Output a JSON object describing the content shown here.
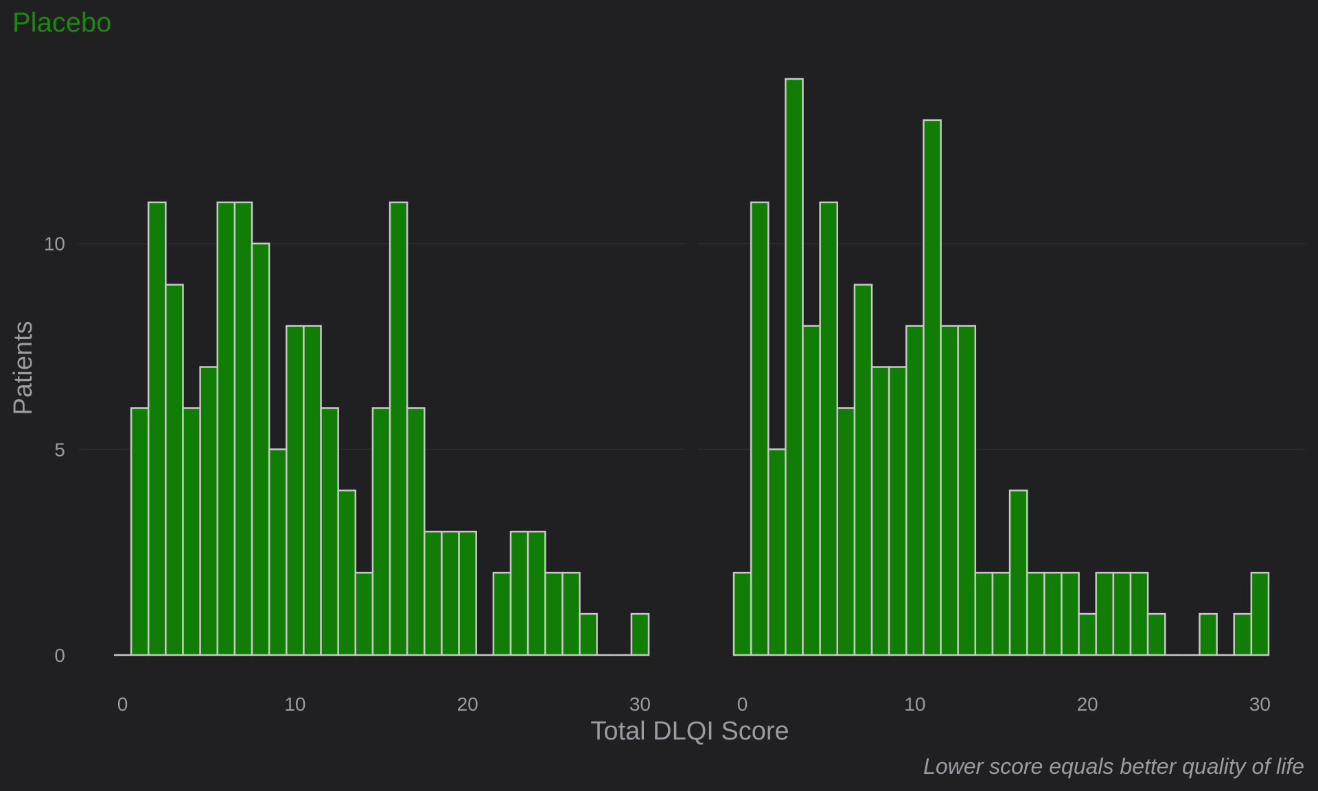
{
  "chart_data": {
    "type": "bar",
    "title": "Placebo",
    "xlabel": "Total DLQI Score",
    "ylabel": "Patients",
    "caption": "Lower score equals better quality of life",
    "ylim": [
      0,
      14
    ],
    "y_ticks": [
      0,
      5,
      10
    ],
    "x_ticks": [
      0,
      10,
      20,
      30
    ],
    "grid": true,
    "colors": {
      "background": "#202023",
      "bar_fill": "#117d06",
      "bar_outline": "#c8c8c8",
      "title": "#1a8a0c",
      "text": "#9a9aa0"
    },
    "panels": [
      {
        "xlim": [
          -0.5,
          30.5
        ],
        "x_tick_labels": [
          "0",
          "10",
          "20",
          "30"
        ],
        "series": [
          {
            "values": [
              0,
              6,
              11,
              9,
              6,
              7,
              11,
              11,
              10,
              5,
              8,
              8,
              6,
              4,
              2,
              6,
              11,
              6,
              3,
              3,
              3,
              0,
              2,
              3,
              3,
              2,
              2,
              1,
              0,
              0,
              1
            ]
          }
        ]
      },
      {
        "xlim": [
          -0.5,
          30.5
        ],
        "x_tick_labels": [
          "0",
          "10",
          "20",
          "30"
        ],
        "series": [
          {
            "values": [
              2,
              11,
              5,
              14,
              8,
              11,
              6,
              9,
              7,
              7,
              8,
              13,
              8,
              8,
              2,
              2,
              4,
              2,
              2,
              2,
              1,
              2,
              2,
              2,
              1,
              0,
              0,
              1,
              0,
              1,
              2
            ]
          }
        ]
      }
    ]
  }
}
